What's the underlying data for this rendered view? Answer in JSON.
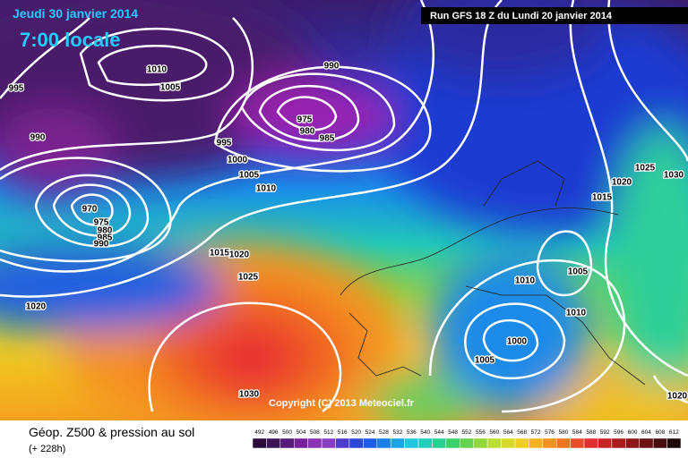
{
  "header": {
    "date": "Jeudi 30 janvier 2014",
    "time": "7:00 locale",
    "run": "Run GFS 18 Z du Lundi 20 janvier 2014"
  },
  "copyright": "Copyright (C) 2013 Meteociel.fr",
  "footer": {
    "title": "Géop. Z500 & pression au sol",
    "lead": "(+ 228h)"
  },
  "isobar_labels": [
    "1010",
    "1005",
    "995",
    "990",
    "975",
    "980",
    "985",
    "990",
    "995",
    "1000",
    "1005",
    "1010",
    "970",
    "975",
    "980",
    "985",
    "990",
    "1015",
    "1020",
    "1025",
    "1020",
    "1030",
    "1025",
    "1020",
    "1030",
    "1015",
    "1005",
    "1010",
    "1010",
    "1000",
    "1005",
    "1020"
  ],
  "scale": {
    "labels": [
      "492",
      "496",
      "500",
      "504",
      "508",
      "512",
      "516",
      "520",
      "524",
      "528",
      "532",
      "536",
      "540",
      "544",
      "548",
      "552",
      "556",
      "560",
      "564",
      "568",
      "572",
      "576",
      "580",
      "584",
      "588",
      "592",
      "596",
      "600",
      "604",
      "608",
      "612"
    ]
  }
}
